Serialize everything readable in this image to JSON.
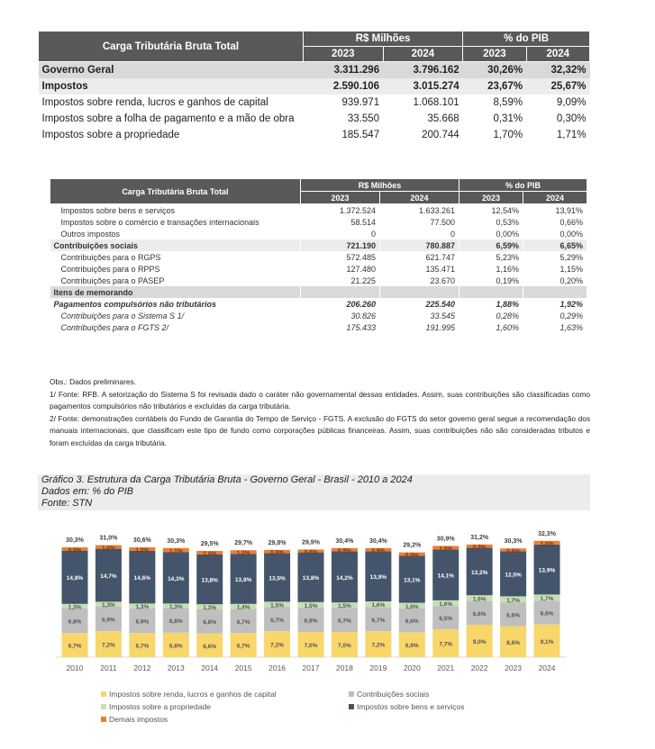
{
  "table1": {
    "title": "Carga Tributária Bruta Total",
    "group_headers": [
      "R$ Milhões",
      "% do PIB"
    ],
    "years": [
      "2023",
      "2024",
      "2023",
      "2024"
    ],
    "rows": [
      {
        "label": "Governo Geral",
        "values": [
          "3.311.296",
          "3.796.162",
          "30,26%",
          "32,32%"
        ],
        "style": "bold shade"
      },
      {
        "label": "Impostos",
        "values": [
          "2.590.106",
          "3.015.274",
          "23,67%",
          "25,67%"
        ],
        "style": "bold shade2"
      },
      {
        "label": "Impostos sobre renda, lucros e ganhos de capital",
        "values": [
          "939.971",
          "1.068.101",
          "8,59%",
          "9,09%"
        ],
        "style": "ind"
      },
      {
        "label": "Impostos sobre a folha de pagamento e a mão de obra",
        "values": [
          "33.550",
          "35.668",
          "0,31%",
          "0,30%"
        ],
        "style": "ind"
      },
      {
        "label": "Impostos sobre a propriedade",
        "values": [
          "185.547",
          "200.744",
          "1,70%",
          "1,71%"
        ],
        "style": "ind"
      }
    ]
  },
  "table2": {
    "title": "Carga Tributária Bruta Total",
    "group_headers": [
      "R$ Milhões",
      "% do PIB"
    ],
    "years": [
      "2023",
      "2024",
      "2023",
      "2024"
    ],
    "rows": [
      {
        "label": "Impostos sobre bens e serviços",
        "values": [
          "1.372.524",
          "1.633.261",
          "12,54%",
          "13,91%"
        ],
        "style": "ind"
      },
      {
        "label": "Impostos sobre o comércio e transações internacionais",
        "values": [
          "58.514",
          "77.500",
          "0,53%",
          "0,66%"
        ],
        "style": "ind"
      },
      {
        "label": "Outros impostos",
        "values": [
          "0",
          "0",
          "0,00%",
          "0,00%"
        ],
        "style": "ind"
      },
      {
        "label": "Contribuições sociais",
        "values": [
          "721.190",
          "780.887",
          "6,59%",
          "6,65%"
        ],
        "style": "bold shade2"
      },
      {
        "label": "Contribuições para o RGPS",
        "values": [
          "572.485",
          "621.747",
          "5,23%",
          "5,29%"
        ],
        "style": "ind"
      },
      {
        "label": "Contribuições para o RPPS",
        "values": [
          "127.480",
          "135.471",
          "1,16%",
          "1,15%"
        ],
        "style": "ind"
      },
      {
        "label": "Contribuições para o PASEP",
        "values": [
          "21.225",
          "23.670",
          "0,19%",
          "0,20%"
        ],
        "style": "ind"
      },
      {
        "label": "Itens de memorando",
        "values": [
          "",
          "",
          "",
          ""
        ],
        "style": "bold shade"
      },
      {
        "label": "Pagamentos compulsórios não tributários",
        "values": [
          "206.260",
          "225.540",
          "1,88%",
          "1,92%"
        ],
        "style": "bold ital"
      },
      {
        "label": "Contribuições para o Sistema S 1/",
        "values": [
          "30.826",
          "33.545",
          "0,28%",
          "0,29%"
        ],
        "style": "ind ital"
      },
      {
        "label": "Contribuições para o FGTS 2/",
        "values": [
          "175.433",
          "191.995",
          "1,60%",
          "1,63%"
        ],
        "style": "ind ital"
      }
    ]
  },
  "notes": [
    "Obs.: Dados preliminares.",
    "1/ Fonte: RFB. A setorização do Sistema S foi revisada dado o caráter não governamental dessas entidades. Assim, suas contribuições são classificadas como pagamentos compulsórios não tributários e excluídas da carga tributária.",
    "2/ Fonte: demonstrações contábeis do Fundo de Garantia do Tempo de Serviço - FGTS. A exclusão do FGTS do setor governo geral segue a recomendação dos manuais internacionais, que classificam este tipo de fundo como corporações públicas financeiras. Assim, suas contribuições não são consideradas tributos e foram excluídas da carga tributária."
  ],
  "chart_caption": {
    "title": "Gráfico 3. Estrutura da Carga Tributária Bruta - Governo Geral - Brasil - 2010 a 2024",
    "units": "Dados em: % do PIB",
    "source": "Fonte: STN"
  },
  "chart_data": {
    "type": "bar",
    "stacked": true,
    "categories": [
      "2010",
      "2011",
      "2012",
      "2013",
      "2014",
      "2015",
      "2016",
      "2017",
      "2018",
      "2019",
      "2020",
      "2021",
      "2022",
      "2023",
      "2024"
    ],
    "series": [
      {
        "name": "Impostos sobre renda, lucros e ganhos de capital",
        "color": "#f9d66a",
        "values": [
          6.7,
          7.2,
          6.7,
          6.8,
          6.6,
          6.7,
          7.2,
          7.0,
          7.0,
          7.2,
          6.9,
          7.7,
          9.0,
          8.6,
          9.1
        ]
      },
      {
        "name": "Contribuições sociais",
        "color": "#bfbfbf",
        "values": [
          6.8,
          6.9,
          6.9,
          6.8,
          6.8,
          6.7,
          6.7,
          6.8,
          6.7,
          6.7,
          6.6,
          6.5,
          6.6,
          6.6,
          6.6
        ]
      },
      {
        "name": "Impostos sobre a propriedade",
        "color": "#c5e0b4",
        "values": [
          1.3,
          1.3,
          1.3,
          1.3,
          1.3,
          1.4,
          1.5,
          1.5,
          1.5,
          1.6,
          1.6,
          1.6,
          1.6,
          1.7,
          1.7
        ]
      },
      {
        "name": "Impostos sobre bens e serviços",
        "color": "#44546a",
        "values": [
          14.8,
          14.7,
          14.6,
          14.3,
          13.8,
          13.9,
          13.5,
          13.8,
          14.2,
          13.9,
          13.1,
          14.1,
          13.2,
          12.5,
          13.9
        ]
      },
      {
        "name": "Demais impostos",
        "color": "#ed7d31",
        "values": [
          0.9,
          1.0,
          1.0,
          1.1,
          1.0,
          1.0,
          0.9,
          0.8,
          0.9,
          0.9,
          0.9,
          1.0,
          0.9,
          0.8,
          1.0
        ]
      }
    ],
    "totals": [
      30.3,
      31.0,
      30.6,
      30.3,
      29.5,
      29.7,
      29.8,
      29.9,
      30.4,
      30.4,
      29.2,
      30.9,
      31.2,
      30.3,
      32.3
    ],
    "legend_order": [
      0,
      1,
      2,
      3,
      4
    ],
    "legend_position": "bottom",
    "grid": false,
    "ylim": [
      0,
      33
    ]
  }
}
